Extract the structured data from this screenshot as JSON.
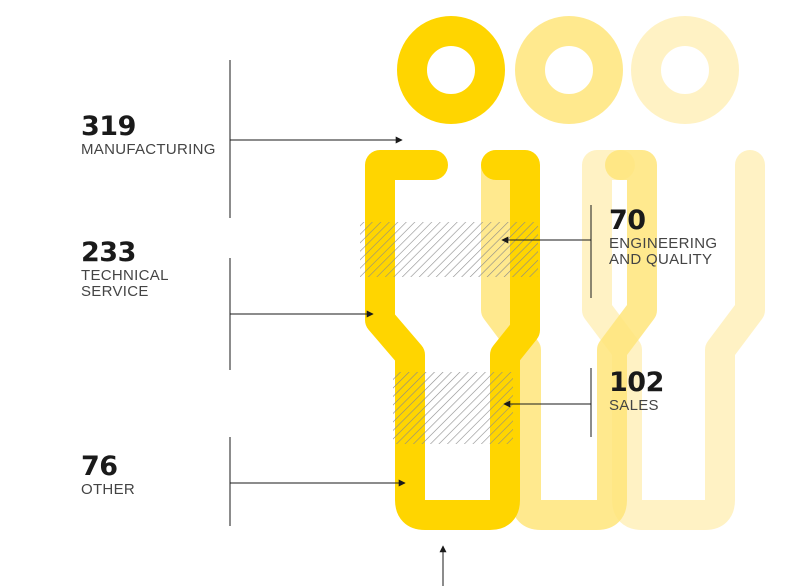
{
  "colors": {
    "accent": "#FFD500",
    "accent_mid": "#FFE57A",
    "accent_light": "#FFF1BE",
    "hatch": "#8a8a8a",
    "line": "#1a1a1a"
  },
  "stats": {
    "manufacturing": {
      "value": "319",
      "label": "MANUFACTURING"
    },
    "technical_service": {
      "value": "233",
      "label_line1": "TECHNICAL",
      "label_line2": "SERVICE"
    },
    "other": {
      "value": "76",
      "label": "OTHER"
    },
    "engineering_quality": {
      "value": "70",
      "label_line1": "ENGINEERING",
      "label_line2": "AND QUALITY"
    },
    "sales": {
      "value": "102",
      "label": "SALES"
    }
  }
}
